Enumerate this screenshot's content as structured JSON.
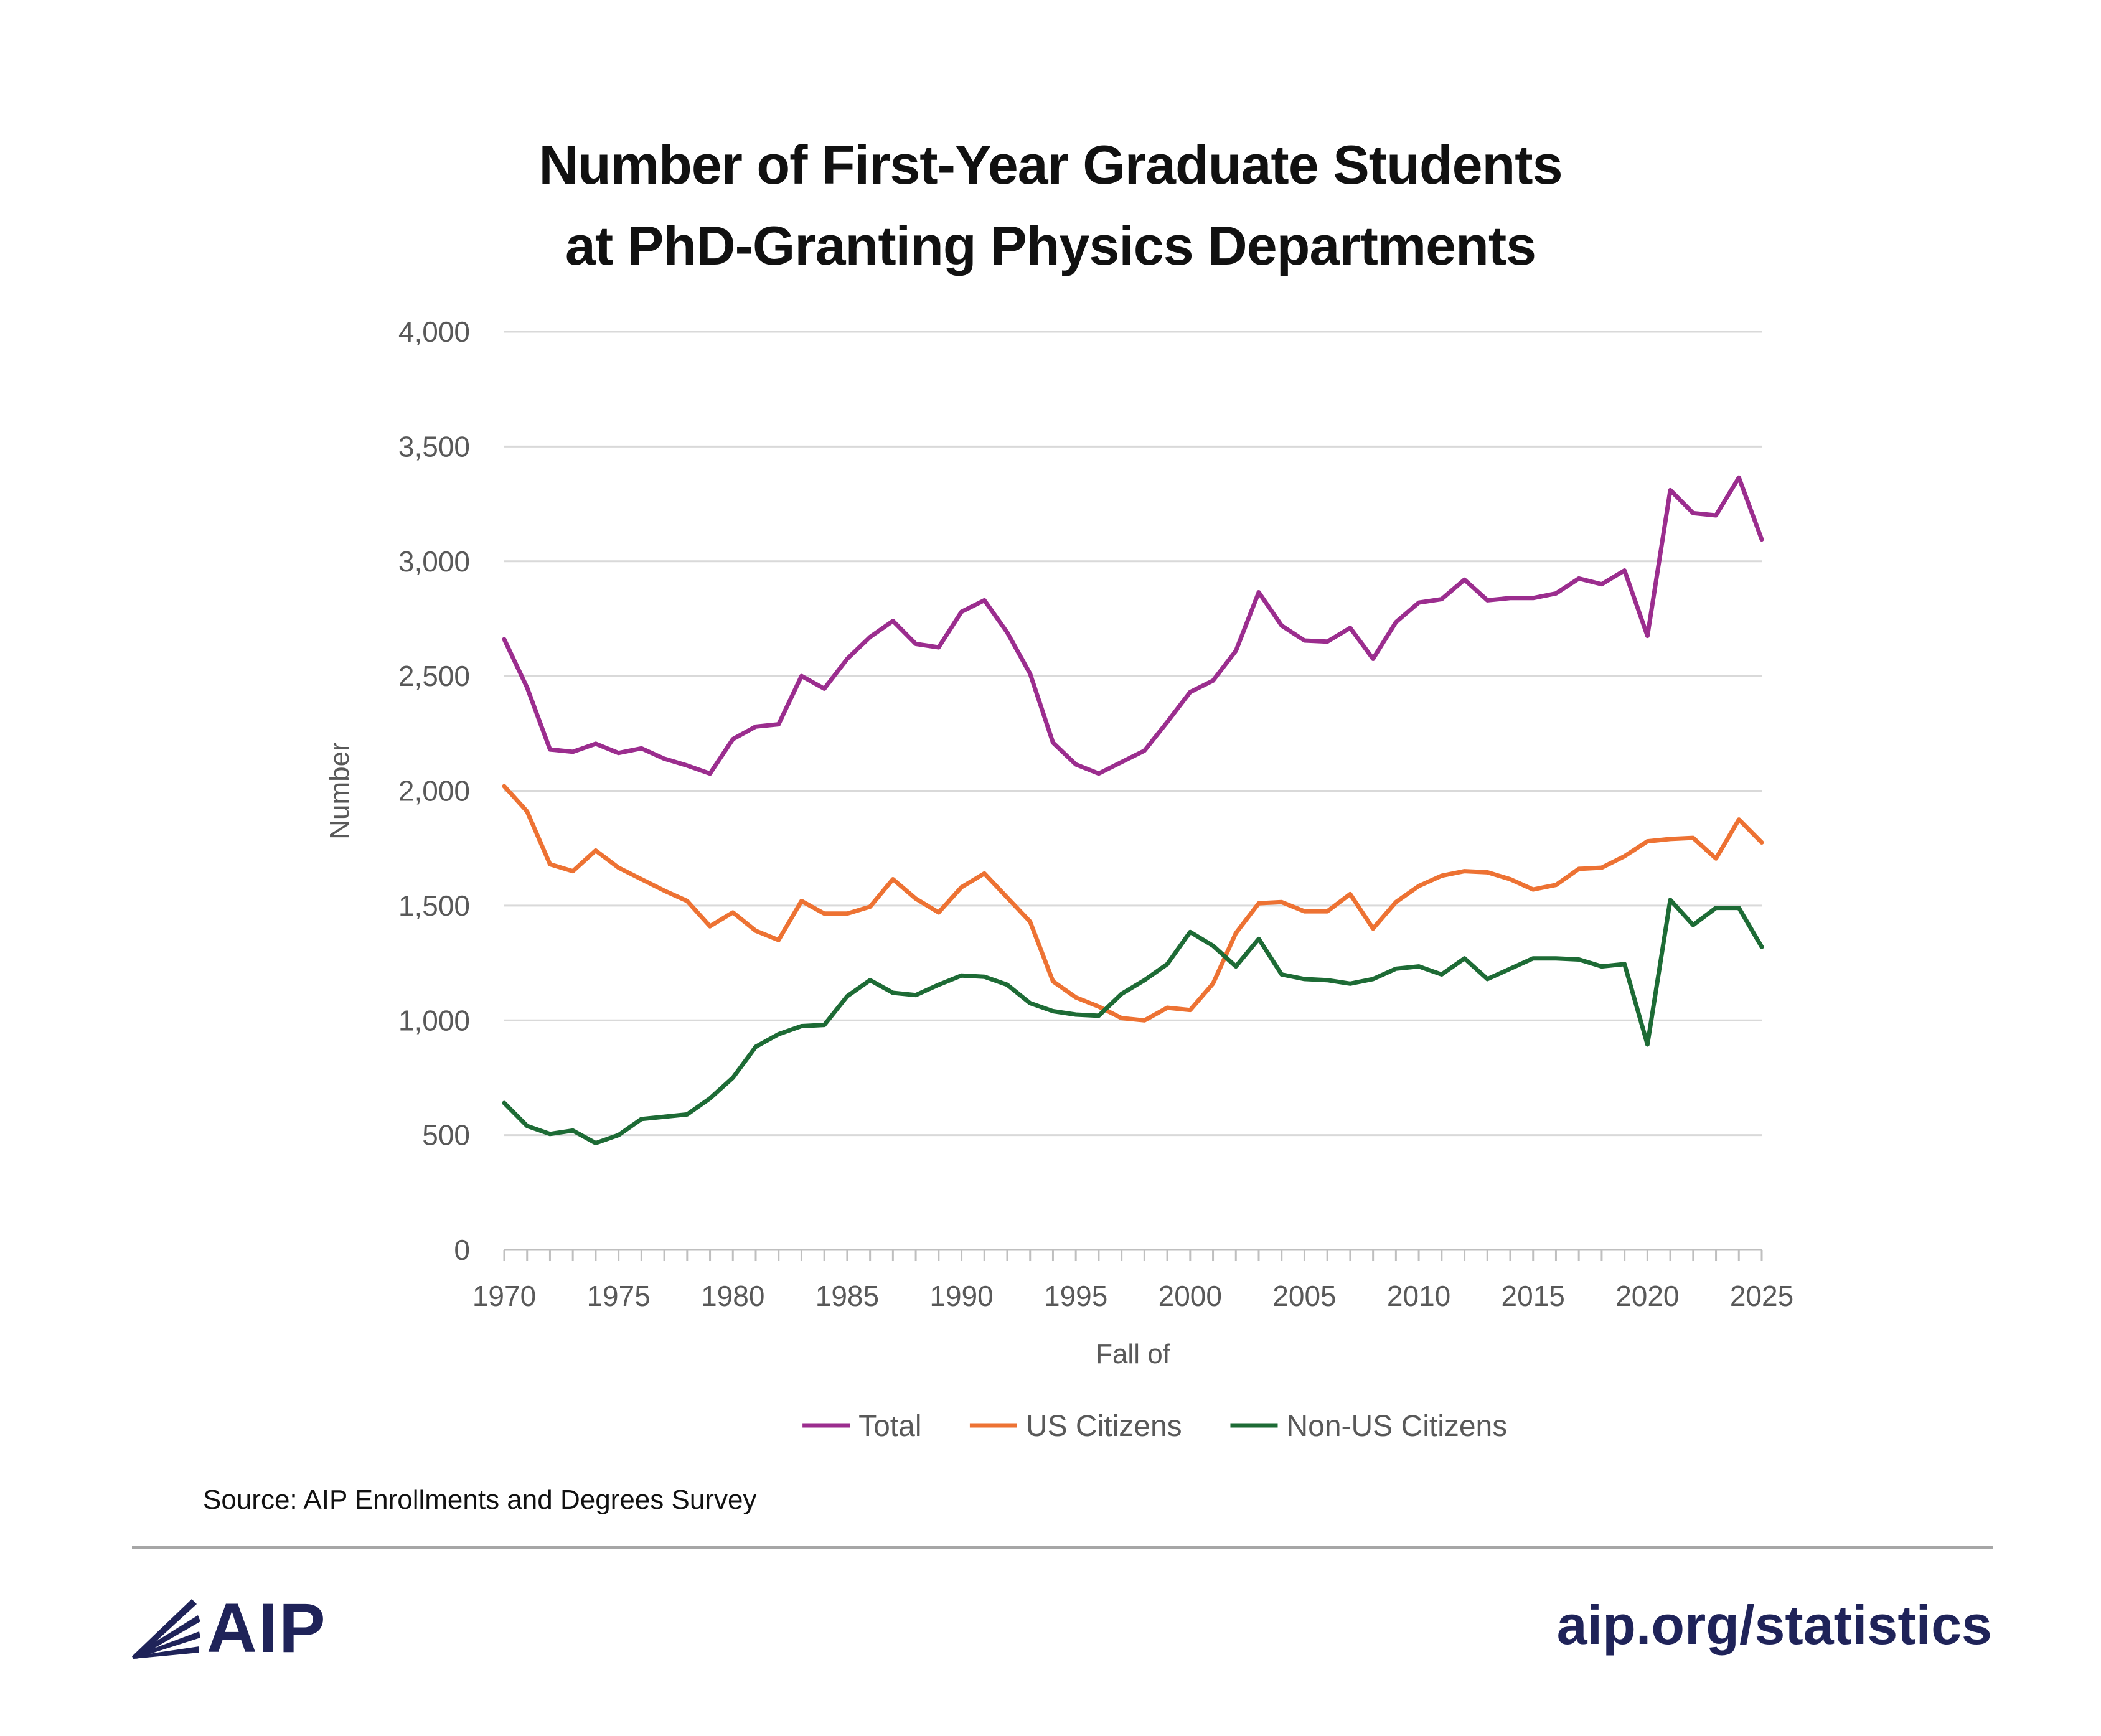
{
  "title_lines": [
    "Number of First-Year Graduate Students",
    "at PhD-Granting Physics Departments"
  ],
  "source_text": "Source: AIP Enrollments and Degrees Survey",
  "footer": {
    "logo_text": "AIP",
    "url_text": "aip.org/statistics",
    "brand_color": "#1f2359"
  },
  "chart_data": {
    "type": "line",
    "title": "Number of First-Year Graduate Students at PhD-Granting Physics Departments",
    "xlabel": "Fall of",
    "ylabel": "Number",
    "xlim": [
      1970,
      2025
    ],
    "ylim": [
      0,
      4000
    ],
    "x_ticks": [
      1970,
      1975,
      1980,
      1985,
      1990,
      1995,
      2000,
      2005,
      2010,
      2015,
      2020,
      2025
    ],
    "y_ticks": [
      0,
      500,
      1000,
      1500,
      2000,
      2500,
      3000,
      3500,
      4000
    ],
    "y_tick_labels": [
      "0",
      "500",
      "1,000",
      "1,500",
      "2,000",
      "2,500",
      "3,000",
      "3,500",
      "4,000"
    ],
    "grid": "horizontal",
    "legend_position": "bottom",
    "x": [
      1970,
      1971,
      1972,
      1973,
      1974,
      1975,
      1976,
      1977,
      1978,
      1979,
      1980,
      1981,
      1982,
      1983,
      1984,
      1985,
      1986,
      1987,
      1988,
      1989,
      1990,
      1991,
      1992,
      1993,
      1994,
      1995,
      1996,
      1997,
      1998,
      1999,
      2000,
      2001,
      2002,
      2003,
      2004,
      2005,
      2006,
      2007,
      2008,
      2009,
      2010,
      2011,
      2012,
      2013,
      2014,
      2015,
      2016,
      2017,
      2018,
      2019,
      2020,
      2021,
      2022,
      2023,
      2024,
      2025
    ],
    "series": [
      {
        "name": "Total",
        "color": "#9b2d8e",
        "values": [
          2660,
          2450,
          2180,
          2170,
          2205,
          2165,
          2185,
          2140,
          2110,
          2075,
          2225,
          2280,
          2290,
          2500,
          2445,
          2575,
          2670,
          2740,
          2640,
          2625,
          2780,
          2830,
          2690,
          2510,
          2210,
          2115,
          2075,
          2125,
          2175,
          2300,
          2430,
          2480,
          2610,
          2865,
          2720,
          2655,
          2650,
          2710,
          2575,
          2735,
          2820,
          2835,
          2920,
          2830,
          2840,
          2840,
          2860,
          2925,
          2900,
          2960,
          2675,
          3310,
          3210,
          3200,
          3365,
          3095
        ]
      },
      {
        "name": "US Citizens",
        "color": "#ed7233",
        "values": [
          2020,
          1910,
          1680,
          1650,
          1740,
          1665,
          1615,
          1565,
          1520,
          1410,
          1470,
          1390,
          1350,
          1520,
          1465,
          1465,
          1495,
          1615,
          1530,
          1470,
          1580,
          1640,
          1535,
          1430,
          1170,
          1100,
          1060,
          1010,
          1000,
          1055,
          1045,
          1160,
          1380,
          1510,
          1515,
          1475,
          1475,
          1550,
          1400,
          1515,
          1585,
          1630,
          1650,
          1645,
          1615,
          1570,
          1590,
          1660,
          1665,
          1715,
          1780,
          1790,
          1795,
          1705,
          1875,
          1775
        ]
      },
      {
        "name": "Non-US Citizens",
        "color": "#1d6b35",
        "values": [
          640,
          540,
          505,
          520,
          465,
          500,
          570,
          580,
          590,
          660,
          750,
          885,
          940,
          975,
          980,
          1105,
          1175,
          1120,
          1110,
          1155,
          1195,
          1190,
          1155,
          1075,
          1040,
          1025,
          1020,
          1115,
          1175,
          1245,
          1385,
          1325,
          1235,
          1355,
          1200,
          1180,
          1175,
          1160,
          1180,
          1225,
          1235,
          1200,
          1270,
          1180,
          1225,
          1270,
          1270,
          1265,
          1235,
          1245,
          895,
          1525,
          1415,
          1490,
          1490,
          1320
        ]
      }
    ]
  }
}
